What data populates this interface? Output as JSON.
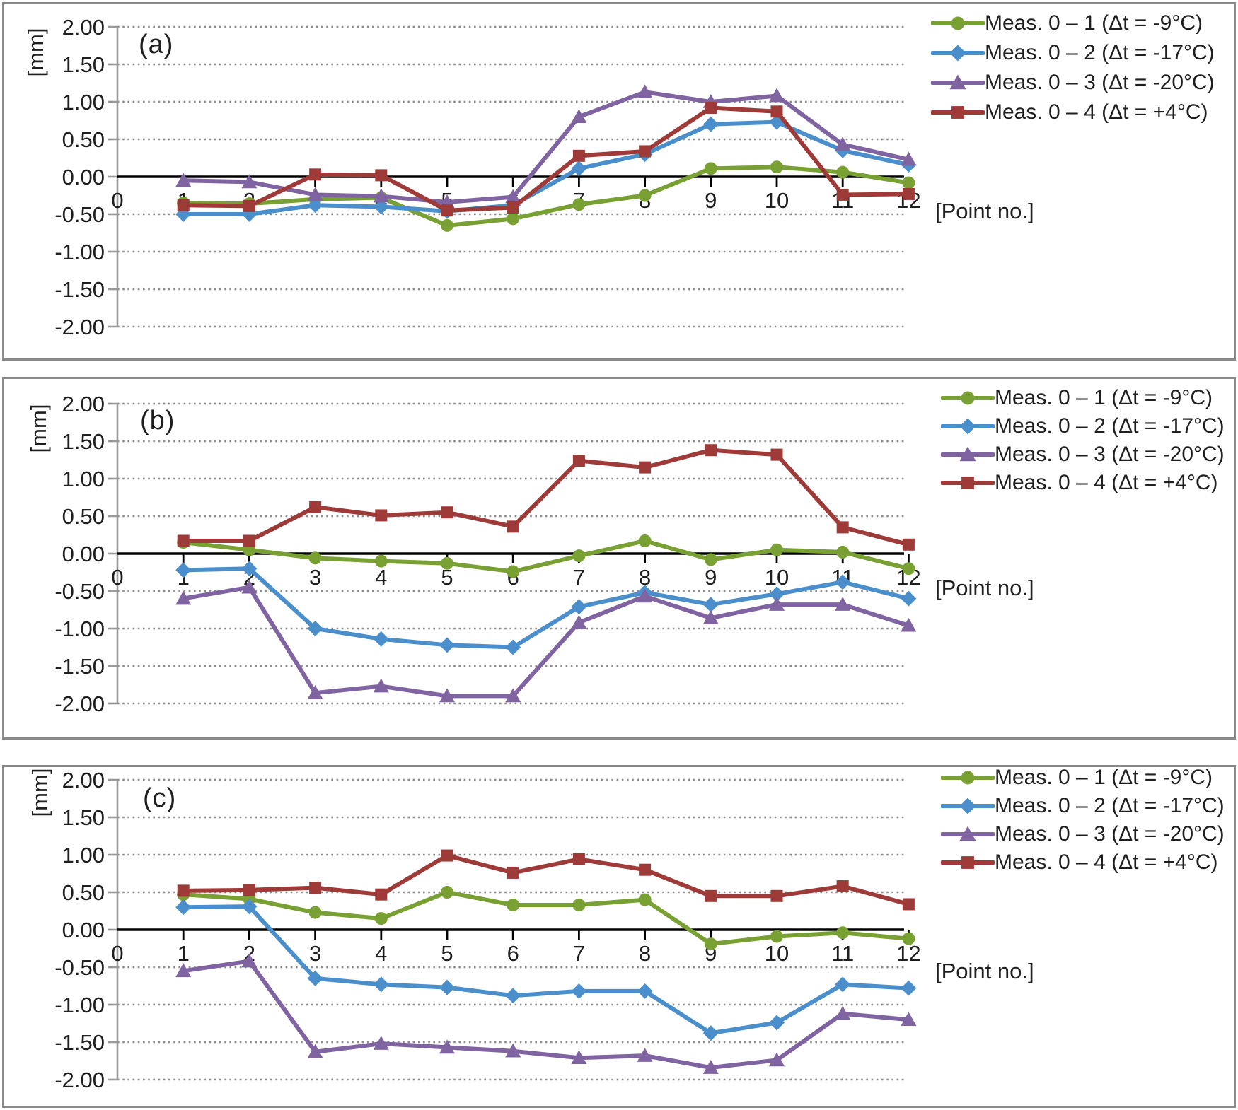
{
  "figure": {
    "unit_label": "[mm]",
    "x_axis_label": "[Point no.]",
    "x_tick_labels": [
      "0",
      "1",
      "2",
      "3",
      "4",
      "5",
      "6",
      "7",
      "8",
      "9",
      "10",
      "11",
      "12"
    ],
    "y_tick_labels": [
      "2.00",
      "1.50",
      "1.00",
      "0.50",
      "0.00",
      "-0.50",
      "-1.00",
      "-1.50",
      "-2.00"
    ]
  },
  "colors": {
    "series_green": "#79A033",
    "series_blue": "#4A8FCB",
    "series_purple": "#8064A2",
    "series_red": "#9E3B38",
    "gridline": "#8c8c8c",
    "zero_axis": "#000000",
    "y_axis": "#9a9a9a",
    "panel_border": "#8a8a8a"
  },
  "chart_data": [
    {
      "type": "line",
      "panel_label": "(a)",
      "ylabel": "[mm]",
      "xlabel": "[Point no.]",
      "ylim": [
        -2.0,
        2.0
      ],
      "ytick_step": 0.5,
      "grid": "horizontal-dotted",
      "legend_position": "right-top",
      "x": [
        1,
        2,
        3,
        4,
        5,
        6,
        7,
        8,
        9,
        10,
        11,
        12
      ],
      "series": [
        {
          "name": "Meas. 0 – 1 (Δt = -9°C)",
          "color": "#79A033",
          "marker": "circle",
          "values": [
            -0.35,
            -0.36,
            -0.3,
            -0.28,
            -0.65,
            -0.56,
            -0.37,
            -0.25,
            0.11,
            0.13,
            0.06,
            -0.08
          ]
        },
        {
          "name": "Meas. 0 – 2 (Δt = -17°C)",
          "color": "#4A8FCB",
          "marker": "diamond",
          "values": [
            -0.5,
            -0.5,
            -0.38,
            -0.4,
            -0.46,
            -0.38,
            0.11,
            0.3,
            0.7,
            0.73,
            0.35,
            0.16
          ]
        },
        {
          "name": "Meas. 0 – 3 (Δt = -20°C)",
          "color": "#8064A2",
          "marker": "triangle",
          "values": [
            -0.05,
            -0.07,
            -0.24,
            -0.26,
            -0.34,
            -0.27,
            0.8,
            1.13,
            1.0,
            1.08,
            0.43,
            0.23
          ]
        },
        {
          "name": "Meas. 0 – 4 (Δt = +4°C)",
          "color": "#9E3B38",
          "marker": "square",
          "values": [
            -0.38,
            -0.39,
            0.03,
            0.02,
            -0.45,
            -0.41,
            0.28,
            0.34,
            0.92,
            0.87,
            -0.24,
            -0.23
          ]
        }
      ]
    },
    {
      "type": "line",
      "panel_label": "(b)",
      "ylabel": "[mm]",
      "xlabel": "[Point no.]",
      "ylim": [
        -2.0,
        2.0
      ],
      "ytick_step": 0.5,
      "grid": "horizontal-dotted",
      "legend_position": "right-top",
      "x": [
        1,
        2,
        3,
        4,
        5,
        6,
        7,
        8,
        9,
        10,
        11,
        12
      ],
      "series": [
        {
          "name": "Meas. 0 – 1 (Δt = -9°C)",
          "color": "#79A033",
          "marker": "circle",
          "values": [
            0.15,
            0.05,
            -0.06,
            -0.1,
            -0.13,
            -0.24,
            -0.03,
            0.17,
            -0.08,
            0.05,
            0.02,
            -0.2
          ]
        },
        {
          "name": "Meas. 0 – 2 (Δt = -17°C)",
          "color": "#4A8FCB",
          "marker": "diamond",
          "values": [
            -0.22,
            -0.2,
            -1.0,
            -1.14,
            -1.22,
            -1.25,
            -0.71,
            -0.52,
            -0.68,
            -0.54,
            -0.38,
            -0.6
          ]
        },
        {
          "name": "Meas. 0 – 3 (Δt = -20°C)",
          "color": "#8064A2",
          "marker": "triangle",
          "values": [
            -0.6,
            -0.45,
            -1.86,
            -1.77,
            -1.9,
            -1.9,
            -0.92,
            -0.57,
            -0.86,
            -0.68,
            -0.68,
            -0.96
          ]
        },
        {
          "name": "Meas. 0 – 4 (Δt = +4°C)",
          "color": "#9E3B38",
          "marker": "square",
          "values": [
            0.17,
            0.17,
            0.62,
            0.51,
            0.55,
            0.36,
            1.24,
            1.15,
            1.38,
            1.32,
            0.35,
            0.12
          ]
        }
      ]
    },
    {
      "type": "line",
      "panel_label": "(c)",
      "ylabel": "[mm]",
      "xlabel": "[Point no.]",
      "ylim": [
        -2.0,
        2.0
      ],
      "ytick_step": 0.5,
      "grid": "horizontal-dotted",
      "legend_position": "right-top",
      "x": [
        1,
        2,
        3,
        4,
        5,
        6,
        7,
        8,
        9,
        10,
        11,
        12
      ],
      "series": [
        {
          "name": "Meas. 0 – 1 (Δt = -9°C)",
          "color": "#79A033",
          "marker": "circle",
          "values": [
            0.47,
            0.41,
            0.23,
            0.15,
            0.5,
            0.33,
            0.33,
            0.4,
            -0.19,
            -0.09,
            -0.04,
            -0.12
          ]
        },
        {
          "name": "Meas. 0 – 2 (Δt = -17°C)",
          "color": "#4A8FCB",
          "marker": "diamond",
          "values": [
            0.3,
            0.31,
            -0.65,
            -0.73,
            -0.77,
            -0.88,
            -0.82,
            -0.82,
            -1.38,
            -1.24,
            -0.73,
            -0.78
          ]
        },
        {
          "name": "Meas. 0 – 3 (Δt = -20°C)",
          "color": "#8064A2",
          "marker": "triangle",
          "values": [
            -0.55,
            -0.42,
            -1.63,
            -1.52,
            -1.57,
            -1.62,
            -1.71,
            -1.68,
            -1.84,
            -1.74,
            -1.12,
            -1.2
          ]
        },
        {
          "name": "Meas. 0 – 4 (Δt = +4°C)",
          "color": "#9E3B38",
          "marker": "square",
          "values": [
            0.52,
            0.53,
            0.56,
            0.47,
            0.99,
            0.76,
            0.94,
            0.8,
            0.45,
            0.45,
            0.58,
            0.34
          ]
        }
      ]
    }
  ]
}
